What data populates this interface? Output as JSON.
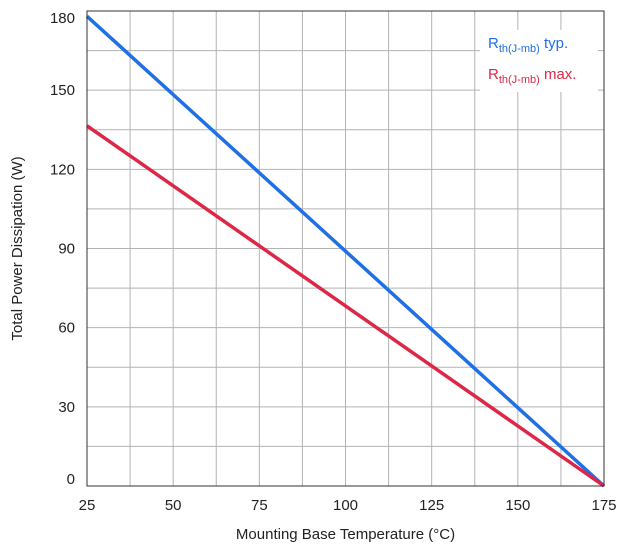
{
  "chart_data": {
    "type": "line",
    "title": "",
    "xlabel": "Mounting Base Temperature (°C)",
    "ylabel": "Total Power Dissipation (W)",
    "xlim": [
      25,
      175
    ],
    "ylim": [
      0,
      180
    ],
    "x_ticks": [
      25,
      50,
      75,
      100,
      125,
      150,
      175
    ],
    "y_ticks": [
      0,
      30,
      60,
      90,
      120,
      150,
      180
    ],
    "x_tick_labels": [
      "25",
      "50",
      "75",
      "100",
      "125",
      "150",
      "175"
    ],
    "y_tick_labels": [
      "0",
      "30",
      "60",
      "90",
      "120",
      "150",
      "180"
    ],
    "x_minor_step": 12.5,
    "y_minor_step": 15,
    "grid": true,
    "legend_position": "top-right",
    "series": [
      {
        "name_main": "R",
        "name_sub": "th(J-mb)",
        "name_suffix": " typ.",
        "color": "#1f6fe5",
        "x": [
          25,
          175
        ],
        "y": [
          178,
          0
        ]
      },
      {
        "name_main": "R",
        "name_sub": "th(J-mb)",
        "name_suffix": " max.",
        "color": "#dc2846",
        "x": [
          25,
          175
        ],
        "y": [
          136.5,
          0
        ]
      }
    ]
  }
}
